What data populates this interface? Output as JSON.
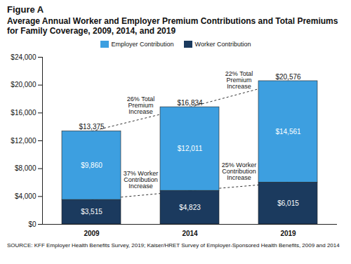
{
  "chart_data": {
    "type": "bar",
    "title": "Figure A",
    "subtitle": "Average Annual Worker and Employer Premium Contributions and Total Premiums for Family Coverage, 2009, 2014, and 2019",
    "source": "SOURCE: KFF Employer Health Benefits Survey, 2019; Kaiser/HRET Survey of Employer-Sponsored Health Benefits, 2009 and 2014",
    "categories": [
      "2009",
      "2014",
      "2019"
    ],
    "stacked": true,
    "data_labels": true,
    "legend": "top",
    "grid": false,
    "series": [
      {
        "name": "Employer Contribution",
        "color": "#3d9fe0",
        "values": [
          9860,
          12011,
          14561
        ],
        "value_labels": [
          "$9,860",
          "$12,011",
          "$14,561"
        ]
      },
      {
        "name": "Worker Contribution",
        "color": "#1b3a5e",
        "values": [
          3515,
          4823,
          6015
        ],
        "value_labels": [
          "$3,515",
          "$4,823",
          "$6,015"
        ]
      }
    ],
    "totals": [
      13375,
      16834,
      20576
    ],
    "total_labels": [
      "$13,375",
      "$16,834",
      "$20,576"
    ],
    "annotations": {
      "total_increase": [
        "26% Total\nPremium\nIncrease",
        "22% Total\nPremium\nIncrease"
      ],
      "worker_increase": [
        "37% Worker\nContribution\nIncrease",
        "25% Worker\nContribution\nIncrease"
      ]
    },
    "ylim": [
      0,
      24000
    ],
    "yticks": [
      {
        "value": 0,
        "label": "$0"
      },
      {
        "value": 4000,
        "label": "$4,000"
      },
      {
        "value": 8000,
        "label": "$8,000"
      },
      {
        "value": 12000,
        "label": "$12,000"
      },
      {
        "value": 16000,
        "label": "$16,000"
      },
      {
        "value": 20000,
        "label": "$20,000"
      },
      {
        "value": 24000,
        "label": "$24,000"
      }
    ]
  }
}
